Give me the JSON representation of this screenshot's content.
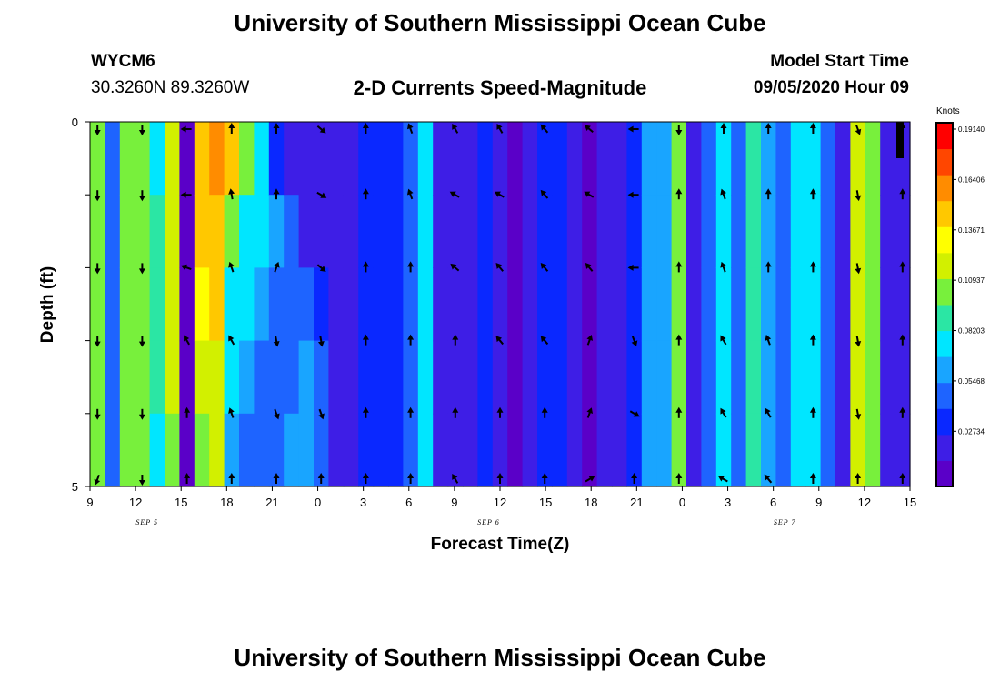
{
  "header": {
    "main_title": "University of Southern Mississippi Ocean Cube",
    "station_id": "WYCM6",
    "station_coords": "30.3260N 89.3260W",
    "chart_title": "2-D Currents Speed-Magnitude",
    "model_start_label": "Model Start Time",
    "model_start_value": "09/05/2020 Hour 09"
  },
  "footer": {
    "title": "University of Southern Mississippi Ocean Cube"
  },
  "chart_data": {
    "type": "heatmap",
    "title": "2-D Currents Speed-Magnitude",
    "xlabel": "Forecast Time(Z)",
    "ylabel": "Depth (ft)",
    "x_tick_labels": [
      "9",
      "12",
      "15",
      "18",
      "21",
      "0",
      "3",
      "6",
      "9",
      "12",
      "15",
      "18",
      "21",
      "0",
      "3",
      "6",
      "9",
      "12",
      "15"
    ],
    "date_labels": [
      "SEP 5",
      "SEP 6",
      "SEP 7"
    ],
    "y_tick_labels": [
      "0",
      "5"
    ],
    "ylim": [
      0,
      5
    ],
    "colorbar": {
      "units": "Knots",
      "tick_labels": [
        "0.19140",
        "0.16406",
        "0.13671",
        "0.10937",
        "0.08203",
        "0.05468",
        "0.02734"
      ],
      "range": [
        0,
        0.21874
      ]
    },
    "hours": [
      9,
      10,
      11,
      12,
      13,
      14,
      15,
      16,
      17,
      18,
      19,
      20,
      21,
      22,
      23,
      0,
      1,
      2,
      3,
      4,
      5,
      6,
      7,
      8,
      9,
      10,
      11,
      12,
      13,
      14,
      15,
      16,
      17,
      18,
      19,
      20,
      21,
      22,
      23,
      0,
      1,
      2,
      3,
      4,
      5,
      6,
      7,
      8,
      9,
      10,
      11,
      12,
      13,
      14,
      15
    ],
    "depth_levels": [
      0,
      1,
      2,
      3,
      4,
      5
    ],
    "speed_knots": [
      [
        0.11,
        0.11,
        0.11,
        0.11,
        0.11
      ],
      [
        0.05,
        0.05,
        0.05,
        0.05,
        0.05
      ],
      [
        0.12,
        0.12,
        0.12,
        0.12,
        0.12
      ],
      [
        0.11,
        0.11,
        0.11,
        0.12,
        0.12
      ],
      [
        0.09,
        0.1,
        0.1,
        0.1,
        0.08
      ],
      [
        0.14,
        0.14,
        0.14,
        0.13,
        0.12
      ],
      [
        0.005,
        0.005,
        0.005,
        0.005,
        0.005
      ],
      [
        0.17,
        0.16,
        0.15,
        0.14,
        0.12
      ],
      [
        0.18,
        0.17,
        0.16,
        0.14,
        0.13
      ],
      [
        0.16,
        0.11,
        0.09,
        0.08,
        0.07
      ],
      [
        0.12,
        0.09,
        0.08,
        0.07,
        0.06
      ],
      [
        0.08,
        0.08,
        0.07,
        0.06,
        0.06
      ],
      [
        0.04,
        0.07,
        0.05,
        0.06,
        0.06
      ],
      [
        0.03,
        0.05,
        0.05,
        0.06,
        0.07
      ],
      [
        0.03,
        0.03,
        0.06,
        0.07,
        0.07
      ],
      [
        0.03,
        0.03,
        0.04,
        0.06,
        0.06
      ],
      [
        0.025,
        0.025,
        0.03,
        0.03,
        0.03
      ],
      [
        0.025,
        0.025,
        0.025,
        0.025,
        0.025
      ],
      [
        0.04,
        0.04,
        0.04,
        0.04,
        0.04
      ],
      [
        0.045,
        0.045,
        0.045,
        0.045,
        0.045
      ],
      [
        0.035,
        0.035,
        0.035,
        0.035,
        0.035
      ],
      [
        0.06,
        0.06,
        0.06,
        0.06,
        0.06
      ],
      [
        0.085,
        0.085,
        0.085,
        0.085,
        0.085
      ],
      [
        0.02,
        0.02,
        0.02,
        0.02,
        0.02
      ],
      [
        0.02,
        0.02,
        0.02,
        0.02,
        0.02
      ],
      [
        0.03,
        0.03,
        0.03,
        0.03,
        0.03
      ],
      [
        0.045,
        0.045,
        0.045,
        0.045,
        0.045
      ],
      [
        0.02,
        0.02,
        0.02,
        0.02,
        0.02
      ],
      [
        0.015,
        0.015,
        0.015,
        0.015,
        0.015
      ],
      [
        0.02,
        0.02,
        0.02,
        0.02,
        0.02
      ],
      [
        0.035,
        0.035,
        0.035,
        0.035,
        0.035
      ],
      [
        0.04,
        0.04,
        0.04,
        0.04,
        0.04
      ],
      [
        0.02,
        0.02,
        0.02,
        0.02,
        0.02
      ],
      [
        0.015,
        0.015,
        0.015,
        0.015,
        0.015
      ],
      [
        0.02,
        0.02,
        0.02,
        0.02,
        0.02
      ],
      [
        0.025,
        0.025,
        0.025,
        0.025,
        0.025
      ],
      [
        0.045,
        0.045,
        0.045,
        0.045,
        0.045
      ],
      [
        0.07,
        0.07,
        0.07,
        0.07,
        0.07
      ],
      [
        0.075,
        0.075,
        0.075,
        0.075,
        0.075
      ],
      [
        0.11,
        0.11,
        0.11,
        0.11,
        0.11
      ],
      [
        0.02,
        0.02,
        0.02,
        0.02,
        0.02
      ],
      [
        0.06,
        0.06,
        0.06,
        0.06,
        0.06
      ],
      [
        0.09,
        0.09,
        0.09,
        0.09,
        0.09
      ],
      [
        0.06,
        0.06,
        0.06,
        0.06,
        0.06
      ],
      [
        0.1,
        0.1,
        0.1,
        0.1,
        0.1
      ],
      [
        0.07,
        0.07,
        0.07,
        0.07,
        0.07
      ],
      [
        0.06,
        0.06,
        0.06,
        0.06,
        0.06
      ],
      [
        0.08,
        0.08,
        0.08,
        0.08,
        0.08
      ],
      [
        0.085,
        0.085,
        0.085,
        0.085,
        0.085
      ],
      [
        0.06,
        0.06,
        0.06,
        0.06,
        0.06
      ],
      [
        0.03,
        0.03,
        0.03,
        0.03,
        0.03
      ],
      [
        0.14,
        0.14,
        0.14,
        0.14,
        0.14
      ],
      [
        0.12,
        0.12,
        0.12,
        0.12,
        0.12
      ],
      [
        0.03,
        0.03,
        0.03,
        0.03,
        0.03
      ],
      [
        0.02,
        0.02,
        0.02,
        0.02,
        0.02
      ]
    ],
    "arrow_hours_index": [
      0,
      3,
      6,
      9,
      12,
      15,
      18,
      21,
      24,
      27,
      30,
      33,
      36,
      39,
      42,
      45,
      48,
      51,
      54
    ],
    "arrow_depths": [
      0.1,
      1.0,
      2.0,
      3.0,
      4.0,
      4.9
    ],
    "arrow_directions_deg": [
      [
        180,
        180,
        180,
        180,
        180,
        200
      ],
      [
        180,
        180,
        180,
        180,
        180,
        180
      ],
      [
        270,
        270,
        290,
        330,
        0,
        0
      ],
      [
        0,
        350,
        340,
        330,
        340,
        0
      ],
      [
        0,
        0,
        20,
        170,
        160,
        0
      ],
      [
        130,
        120,
        130,
        170,
        160,
        0
      ],
      [
        0,
        0,
        0,
        0,
        0,
        0
      ],
      [
        340,
        340,
        0,
        0,
        0,
        0
      ],
      [
        330,
        300,
        310,
        0,
        0,
        330
      ],
      [
        330,
        300,
        320,
        320,
        0,
        0
      ],
      [
        320,
        320,
        320,
        320,
        0,
        0
      ],
      [
        310,
        300,
        320,
        20,
        20,
        60
      ],
      [
        270,
        270,
        270,
        160,
        120,
        0
      ],
      [
        180,
        0,
        0,
        0,
        0,
        0
      ],
      [
        0,
        340,
        340,
        330,
        330,
        300
      ],
      [
        0,
        0,
        0,
        340,
        330,
        320
      ],
      [
        0,
        0,
        0,
        0,
        0,
        0
      ],
      [
        160,
        170,
        170,
        170,
        170,
        0
      ],
      [
        0,
        0,
        0,
        0,
        0,
        0
      ]
    ]
  },
  "colors": {
    "palette": [
      "#5a00c8",
      "#3e1ee6",
      "#0a28ff",
      "#1e64ff",
      "#19a5ff",
      "#00e6ff",
      "#2be6a4",
      "#78f03c",
      "#d2f000",
      "#ffff00",
      "#ffc800",
      "#ff8c00",
      "#ff4600",
      "#ff0000"
    ]
  }
}
